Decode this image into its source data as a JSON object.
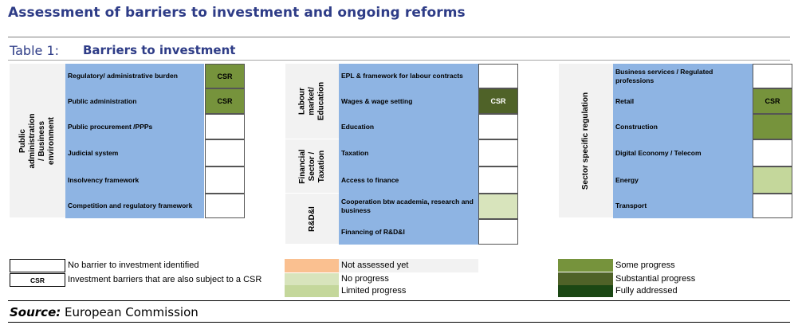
{
  "header": {
    "title": "Assessment of barriers to investment and ongoing reforms",
    "table_label": "Table 1:",
    "table_name": "Barriers to investment"
  },
  "colors": {
    "barrier_cell": "#8eb4e3",
    "group_bg": "#f2f2f2",
    "no_barrier": "#ffffff",
    "not_assessed": "#fac090",
    "no_progress": "#d8e4bc",
    "limited_progress": "#c4d79b",
    "some_progress": "#76933c",
    "substantial_progress": "#4f6228",
    "fully_addressed": "#1b4714"
  },
  "groups": {
    "public_admin": "Public administration / Business environment",
    "labour": "Labour market/ Education",
    "financial": "Financial Sector / Taxation",
    "rdi": "R&D&I",
    "sector": "Sector specific regulation"
  },
  "columns": [
    {
      "rows": [
        {
          "label": "Regulatory/ administrative burden",
          "status": "some_progress",
          "csr": "CSR"
        },
        {
          "label": "Public administration",
          "status": "some_progress",
          "csr": "CSR"
        },
        {
          "label": "Public procurement /PPPs",
          "status": "no_barrier",
          "csr": ""
        },
        {
          "label": "Judicial system",
          "status": "no_barrier",
          "csr": ""
        },
        {
          "label": "Insolvency framework",
          "status": "no_barrier",
          "csr": ""
        },
        {
          "label": "Competition and regulatory framework",
          "status": "no_barrier",
          "csr": ""
        }
      ]
    },
    {
      "rows": [
        {
          "label": "EPL & framework for labour contracts",
          "status": "no_barrier",
          "csr": ""
        },
        {
          "label": "Wages & wage setting",
          "status": "substantial_progress",
          "csr": "CSR"
        },
        {
          "label": "Education",
          "status": "no_barrier",
          "csr": ""
        },
        {
          "label": "Taxation",
          "status": "no_barrier",
          "csr": ""
        },
        {
          "label": "Access to finance",
          "status": "no_barrier",
          "csr": ""
        },
        {
          "label": "Cooperation btw academia, research and business",
          "status": "no_progress",
          "csr": ""
        },
        {
          "label": "Financing of R&D&I",
          "status": "no_barrier",
          "csr": ""
        }
      ]
    },
    {
      "rows": [
        {
          "label": "Business services / Regulated professions",
          "status": "no_barrier",
          "csr": ""
        },
        {
          "label": "Retail",
          "status": "some_progress",
          "csr": "CSR"
        },
        {
          "label": "Construction",
          "status": "some_progress",
          "csr": ""
        },
        {
          "label": "Digital Economy / Telecom",
          "status": "no_barrier",
          "csr": ""
        },
        {
          "label": "Energy",
          "status": "limited_progress",
          "csr": ""
        },
        {
          "label": "Transport",
          "status": "no_barrier",
          "csr": ""
        }
      ]
    }
  ],
  "legend": {
    "no_barrier": "No barrier to investment identified",
    "csr_box": "CSR",
    "csr_text": "Investment barriers that are also subject to a CSR",
    "not_assessed": "Not assessed yet",
    "no_progress": "No progress",
    "limited_progress": "Limited progress",
    "some_progress": "Some progress",
    "substantial_progress": "Substantial progress",
    "fully_addressed": "Fully addressed"
  },
  "source": {
    "label": "Source:",
    "text": "European Commission"
  }
}
